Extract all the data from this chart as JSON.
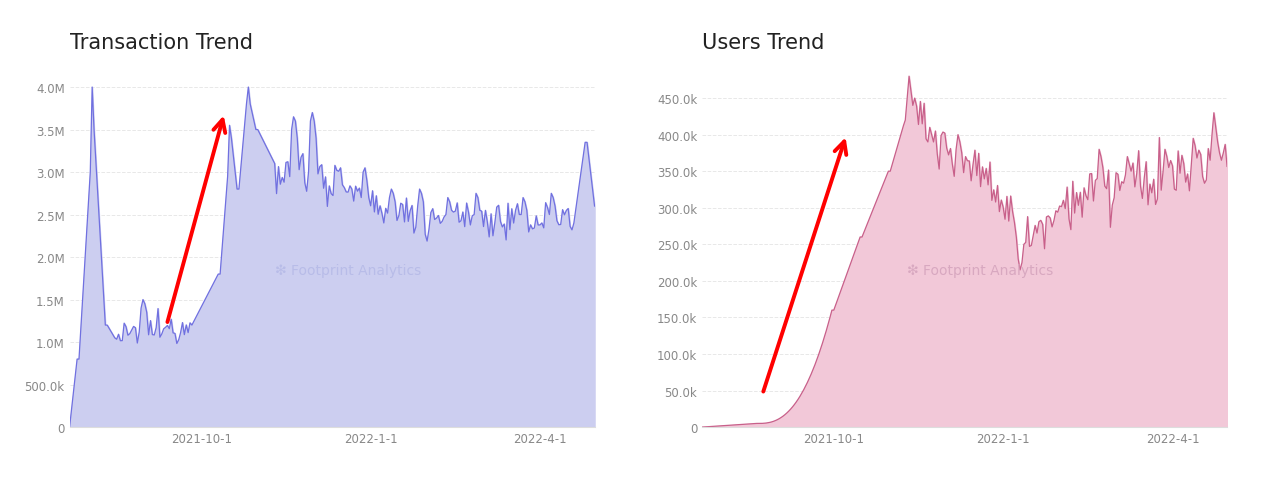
{
  "title_left": "Transaction Trend",
  "title_right": "Users Trend",
  "bg_color": "#ffffff",
  "left_fill_color": "#cccef0",
  "left_line_color": "#7070e0",
  "right_fill_color": "#f2c8d8",
  "right_line_color": "#c8608a",
  "watermark_color": "#b8bce8",
  "watermark_color_right": "#d8a8c0",
  "left_yticks": [
    0,
    500000,
    1000000,
    1500000,
    2000000,
    2500000,
    3000000,
    3500000,
    4000000
  ],
  "left_ytick_labels": [
    "0",
    "500.0k",
    "1.0M",
    "1.5M",
    "2.0M",
    "2.5M",
    "3.0M",
    "3.5M",
    "4.0M"
  ],
  "right_yticks": [
    0,
    50000,
    100000,
    150000,
    200000,
    250000,
    300000,
    350000,
    400000,
    450000
  ],
  "right_ytick_labels": [
    "0",
    "50.0k",
    "100.0k",
    "150.0k",
    "200.0k",
    "250.0k",
    "300.0k",
    "350.0k",
    "400.0k",
    "450.0k"
  ],
  "xtick_labels": [
    "2021-10-1",
    "2022-1-1",
    "2022-4-1"
  ]
}
